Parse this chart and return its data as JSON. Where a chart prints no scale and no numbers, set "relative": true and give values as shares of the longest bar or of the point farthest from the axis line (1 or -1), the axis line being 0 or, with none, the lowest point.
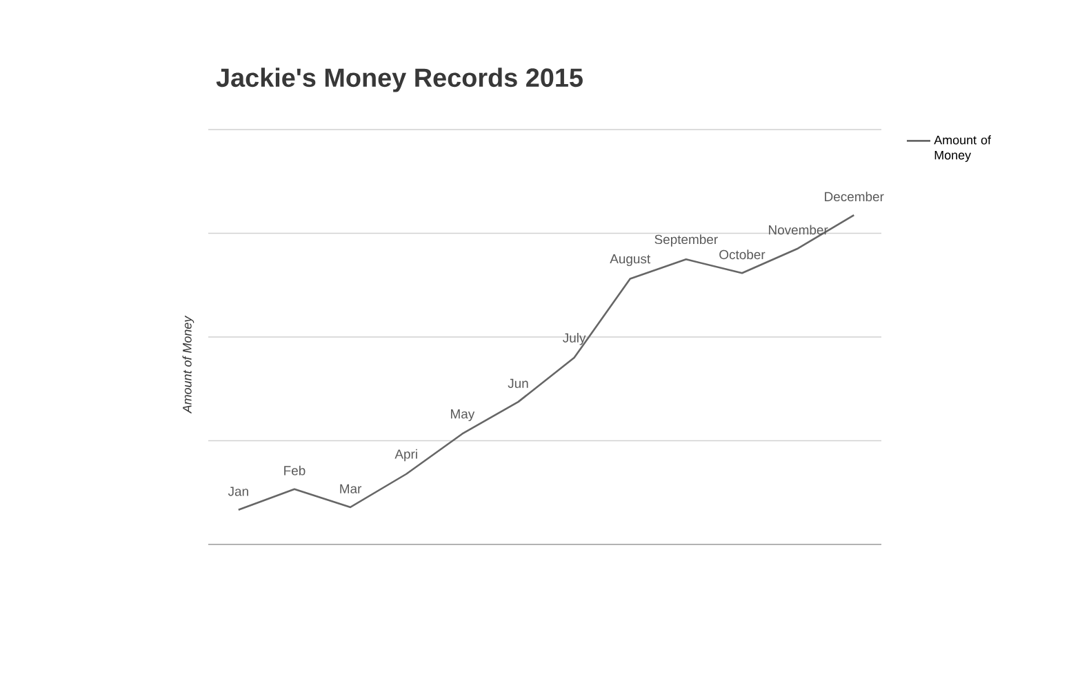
{
  "chart_data": {
    "type": "line",
    "title": "Jackie's Money Records 2015",
    "ylabel": "Amount of Money",
    "categories": [
      "Jan",
      "Feb",
      "Mar",
      "Apri",
      "May",
      "Jun",
      "July",
      "August",
      "September",
      "October",
      "November",
      "December"
    ],
    "series": [
      {
        "name": "Amount of Money",
        "color": "#666666",
        "values": [
          0.105,
          0.168,
          0.113,
          0.214,
          0.336,
          0.433,
          0.567,
          0.807,
          0.866,
          0.824,
          0.899,
          1.0
        ]
      }
    ],
    "relative": true,
    "grid": "y",
    "legend": "top right",
    "marker": "none",
    "line_style": "solid"
  }
}
